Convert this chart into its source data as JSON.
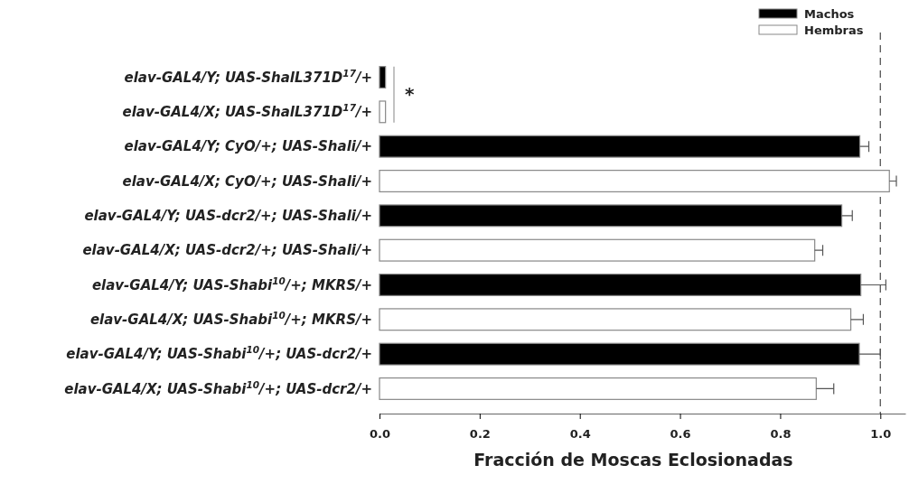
{
  "chart_data": {
    "type": "bar",
    "orientation": "horizontal",
    "xlabel": "Fracción de Moscas Eclosionadas",
    "categories": [
      "elav-GAL4/Y; UAS-ShalL371D$^{17}$/+",
      "elav-GAL4/X; UAS-ShalL371D$^{17}$/+",
      "elav-GAL4/Y; CyO/+; UAS-Shali/+",
      "elav-GAL4/X; CyO/+; UAS-Shali/+",
      "elav-GAL4/Y; UAS-dcr2/+; UAS-Shali/+",
      "elav-GAL4/X; UAS-dcr2/+; UAS-Shali/+",
      "elav-GAL4/Y; UAS-Shabi$^{10}$/+; MKRS/+",
      "elav-GAL4/X; UAS-Shabi$^{10}$/+; MKRS/+",
      "elav-GAL4/Y; UAS-Shabi$^{10}$/+; UAS-dcr2/+",
      "elav-GAL4/X; UAS-Shabi$^{10}$/+; UAS-dcr2/+"
    ],
    "series": [
      {
        "name": "Machos",
        "color": "#000000",
        "values": [
          0.012,
          null,
          0.959,
          null,
          0.923,
          null,
          0.961,
          null,
          0.958,
          null
        ],
        "errors": [
          null,
          null,
          0.018,
          null,
          0.021,
          null,
          0.05,
          null,
          0.042,
          null
        ]
      },
      {
        "name": "Hembras",
        "color": "#ffffff",
        "values": [
          null,
          0.012,
          null,
          1.018,
          null,
          0.869,
          null,
          0.941,
          null,
          0.872
        ],
        "errors": [
          null,
          null,
          null,
          0.014,
          null,
          0.016,
          null,
          0.025,
          null,
          0.035
        ]
      }
    ],
    "xlim": [
      0,
      1.05
    ],
    "xticks": [
      {
        "value": 0,
        "label": "0.0"
      },
      {
        "value": 0.2,
        "label": "0.2"
      },
      {
        "value": 0.4,
        "label": "0.4"
      },
      {
        "value": 0.6,
        "label": "0.6"
      },
      {
        "value": 0.8,
        "label": "0.8"
      },
      {
        "value": 1,
        "label": "1.0"
      }
    ],
    "ref_lines": [
      {
        "axis": "x",
        "value": 1,
        "line_style": "dashed",
        "color": "#555555"
      }
    ],
    "annotations": [
      "*"
    ],
    "legend": "top right"
  }
}
